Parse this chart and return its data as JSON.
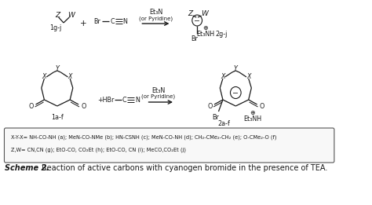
{
  "background_color": "#ffffff",
  "legend_line1": "X-Y-X= NH-CO-NH (a); MeN-CO-NMe (b); HN-CSNH (c); MeN-CO-NH (d); CH₂-CMe₂-CH₂ (e); O-CMe₂-O (f)",
  "legend_line2": "Z,W= CN,CN (g); EtO-CO, CO₂Et (h); EtO-CO, CN (i); MeCO,CO₂Et (j)",
  "caption_bold": "Scheme 2.",
  "caption_normal": " Reaction of active carbons with cyanogen bromide in the presence of TEA.",
  "text_color": "#1a1a1a"
}
